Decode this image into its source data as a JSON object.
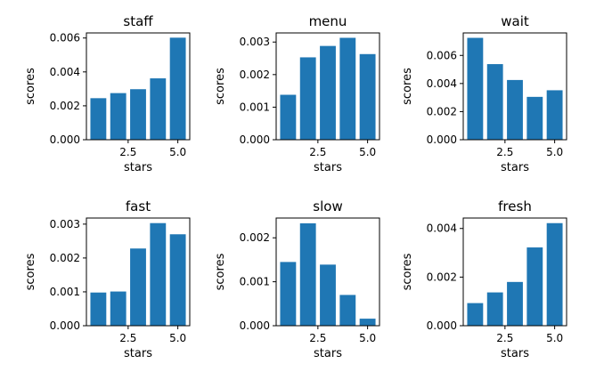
{
  "chart_data": [
    {
      "type": "bar",
      "title": "staff",
      "xlabel": "stars",
      "ylabel": "scores",
      "x": [
        1,
        2,
        3,
        4,
        5
      ],
      "values": [
        0.00245,
        0.00275,
        0.00298,
        0.00362,
        0.00602
      ],
      "xlim": [
        0.4,
        5.6
      ],
      "ylim": [
        0,
        0.0063
      ],
      "xticks": [
        2.5,
        5.0
      ],
      "xtick_labels": [
        "2.5",
        "5.0"
      ],
      "yticks": [
        0,
        0.002,
        0.004,
        0.006
      ],
      "ytick_labels": [
        "0.000",
        "0.002",
        "0.004",
        "0.006"
      ],
      "color": "#1f77b4",
      "grid": false
    },
    {
      "type": "bar",
      "title": "menu",
      "xlabel": "stars",
      "ylabel": "scores",
      "x": [
        1,
        2,
        3,
        4,
        5
      ],
      "values": [
        0.00138,
        0.00253,
        0.00288,
        0.00313,
        0.00263
      ],
      "xlim": [
        0.4,
        5.6
      ],
      "ylim": [
        0,
        0.00328
      ],
      "xticks": [
        2.5,
        5.0
      ],
      "xtick_labels": [
        "2.5",
        "5.0"
      ],
      "yticks": [
        0,
        0.001,
        0.002,
        0.003
      ],
      "ytick_labels": [
        "0.000",
        "0.001",
        "0.002",
        "0.003"
      ],
      "color": "#1f77b4",
      "grid": false
    },
    {
      "type": "bar",
      "title": "wait",
      "xlabel": "stars",
      "ylabel": "scores",
      "x": [
        1,
        2,
        3,
        4,
        5
      ],
      "values": [
        0.00725,
        0.00538,
        0.00425,
        0.00305,
        0.00352
      ],
      "xlim": [
        0.4,
        5.6
      ],
      "ylim": [
        0,
        0.0076
      ],
      "xticks": [
        2.5,
        5.0
      ],
      "xtick_labels": [
        "2.5",
        "5.0"
      ],
      "yticks": [
        0,
        0.002,
        0.004,
        0.006
      ],
      "ytick_labels": [
        "0.000",
        "0.002",
        "0.004",
        "0.006"
      ],
      "color": "#1f77b4",
      "grid": false
    },
    {
      "type": "bar",
      "title": "fast",
      "xlabel": "stars",
      "ylabel": "scores",
      "x": [
        1,
        2,
        3,
        4,
        5
      ],
      "values": [
        0.00098,
        0.00101,
        0.00228,
        0.00303,
        0.0027
      ],
      "xlim": [
        0.4,
        5.6
      ],
      "ylim": [
        0,
        0.00318
      ],
      "xticks": [
        2.5,
        5.0
      ],
      "xtick_labels": [
        "2.5",
        "5.0"
      ],
      "yticks": [
        0,
        0.001,
        0.002,
        0.003
      ],
      "ytick_labels": [
        "0.000",
        "0.001",
        "0.002",
        "0.003"
      ],
      "color": "#1f77b4",
      "grid": false
    },
    {
      "type": "bar",
      "title": "slow",
      "xlabel": "stars",
      "ylabel": "scores",
      "x": [
        1,
        2,
        3,
        4,
        5
      ],
      "values": [
        0.00145,
        0.00233,
        0.00139,
        0.0007,
        0.00016
      ],
      "xlim": [
        0.4,
        5.6
      ],
      "ylim": [
        0,
        0.00245
      ],
      "xticks": [
        2.5,
        5.0
      ],
      "xtick_labels": [
        "2.5",
        "5.0"
      ],
      "yticks": [
        0,
        0.001,
        0.002
      ],
      "ytick_labels": [
        "0.000",
        "0.001",
        "0.002"
      ],
      "color": "#1f77b4",
      "grid": false
    },
    {
      "type": "bar",
      "title": "fresh",
      "xlabel": "stars",
      "ylabel": "scores",
      "x": [
        1,
        2,
        3,
        4,
        5
      ],
      "values": [
        0.00093,
        0.00137,
        0.0018,
        0.00322,
        0.00422
      ],
      "xlim": [
        0.4,
        5.6
      ],
      "ylim": [
        0,
        0.00443
      ],
      "xticks": [
        2.5,
        5.0
      ],
      "xtick_labels": [
        "2.5",
        "5.0"
      ],
      "yticks": [
        0,
        0.002,
        0.004
      ],
      "ytick_labels": [
        "0.000",
        "0.002",
        "0.004"
      ],
      "color": "#1f77b4",
      "grid": false
    }
  ]
}
